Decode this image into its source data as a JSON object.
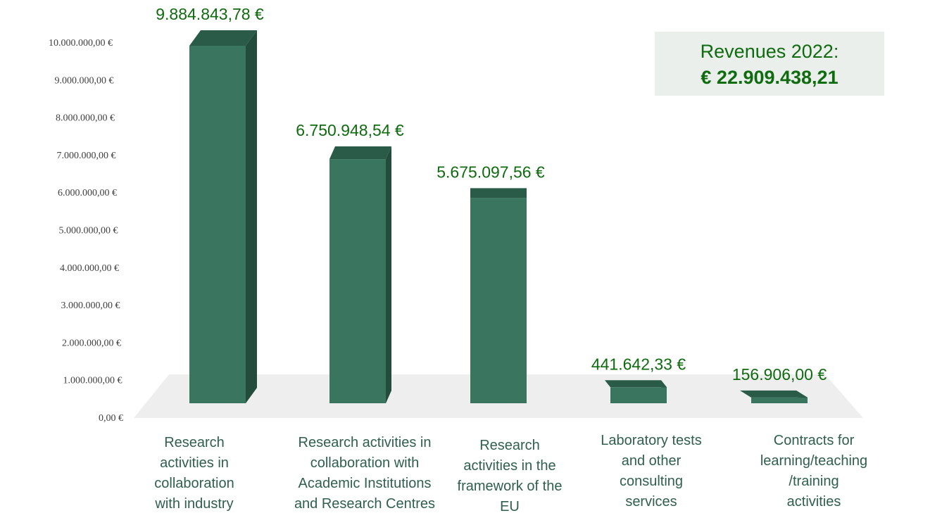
{
  "colors": {
    "bar_front": "#3a7560",
    "bar_top": "#2a5a48",
    "bar_side": "#234c3c",
    "floor": "#eeeeee",
    "label": "#0e6b0e"
  },
  "summary": {
    "title": "Revenues 2022:",
    "total": "€ 22.909.438,21"
  },
  "chart_data": {
    "type": "bar",
    "categories": [
      [
        "Research",
        "activities in",
        "collaboration",
        "with industry"
      ],
      [
        "Research activities in",
        "collaboration with",
        "Academic Institutions",
        "and Research Centres"
      ],
      [
        "Research",
        "activities in the",
        "framework of the",
        "EU"
      ],
      [
        "Laboratory tests",
        "and other",
        "consulting",
        "services"
      ],
      [
        "Contracts for",
        "learning/teaching",
        "/training",
        "activities"
      ]
    ],
    "values": [
      9884843.78,
      6750948.54,
      5675097.56,
      441642.33,
      156906.0
    ],
    "data_labels": [
      "9.884.843,78 €",
      "6.750.948,54 €",
      "5.675.097,56 €",
      "441.642,33 €",
      "156.906,00 €"
    ],
    "yticks": [
      "0,00 €",
      "1.000.000,00 €",
      "2.000.000,00 €",
      "3.000.000,00 €",
      "4.000.000,00 €",
      "5.000.000,00 €",
      "6.000.000,00 €",
      "7.000.000,00 €",
      "8.000.000,00 €",
      "9.000.000,00 €",
      "10.000.000,00 €"
    ],
    "ylim": [
      0,
      10000000
    ],
    "grid": false,
    "legend": "none"
  }
}
